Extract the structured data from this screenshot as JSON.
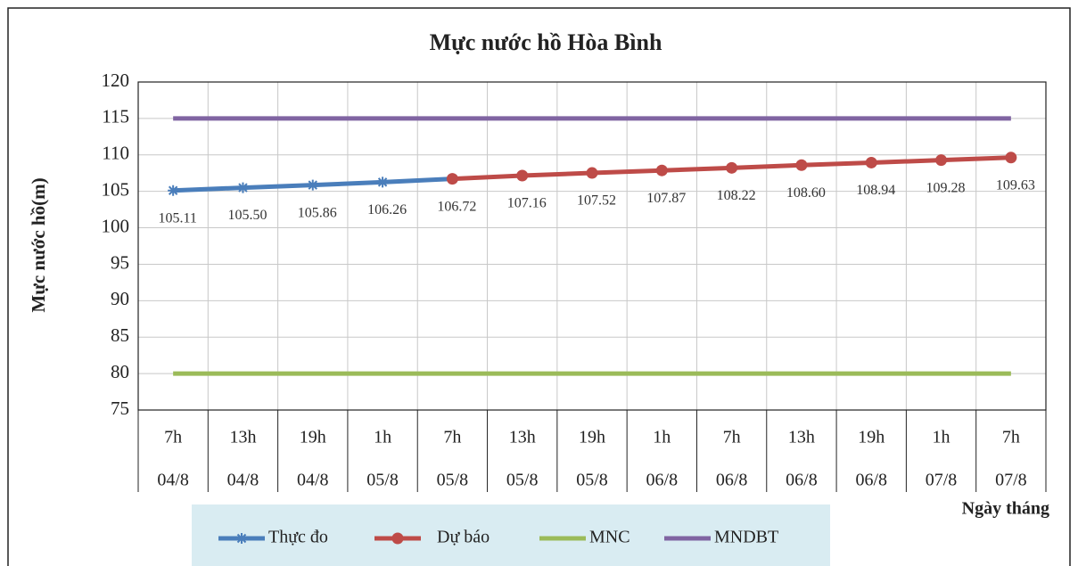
{
  "chart_data": {
    "type": "line",
    "title": "Mực nước hồ Hòa Bình",
    "y_label": "Mực nước hồ(m)",
    "x_label": "Ngày tháng",
    "categories": [
      "7h",
      "13h",
      "19h",
      "1h",
      "7h",
      "13h",
      "19h",
      "1h",
      "7h",
      "13h",
      "19h",
      "1h",
      "7h"
    ],
    "dates": [
      "04/8",
      "04/8",
      "04/8",
      "05/8",
      "05/8",
      "05/8",
      "05/8",
      "06/8",
      "06/8",
      "06/8",
      "06/8",
      "07/8",
      "07/8"
    ],
    "ylim": [
      75,
      120
    ],
    "yticks": [
      75,
      80,
      85,
      90,
      95,
      100,
      105,
      110,
      115,
      120
    ],
    "grid": true,
    "series": [
      {
        "name": "Thực đo",
        "color": "#4a7ebb",
        "marker": "star",
        "values": [
          105.11,
          105.5,
          105.86,
          106.26,
          106.72,
          null,
          null,
          null,
          null,
          null,
          null,
          null,
          null
        ],
        "value_labels": [
          "105.11",
          "105.50",
          "105.86",
          "106.26",
          "106.72",
          null,
          null,
          null,
          null,
          null,
          null,
          null,
          null
        ]
      },
      {
        "name": "Dự báo",
        "color": "#be4b48",
        "marker": "circle",
        "values": [
          null,
          null,
          null,
          null,
          106.72,
          107.16,
          107.52,
          107.87,
          108.22,
          108.6,
          108.94,
          109.28,
          109.63
        ],
        "value_labels": [
          null,
          null,
          null,
          null,
          null,
          "107.16",
          "107.52",
          "107.87",
          "108.22",
          "108.60",
          "108.94",
          "109.28",
          "109.63"
        ]
      },
      {
        "name": "MNC",
        "color": "#9bbb59",
        "values": [
          80,
          80,
          80,
          80,
          80,
          80,
          80,
          80,
          80,
          80,
          80,
          80,
          80
        ]
      },
      {
        "name": "MNDBT",
        "color": "#8064a2",
        "values": [
          115,
          115,
          115,
          115,
          115,
          115,
          115,
          115,
          115,
          115,
          115,
          115,
          115
        ]
      }
    ]
  }
}
